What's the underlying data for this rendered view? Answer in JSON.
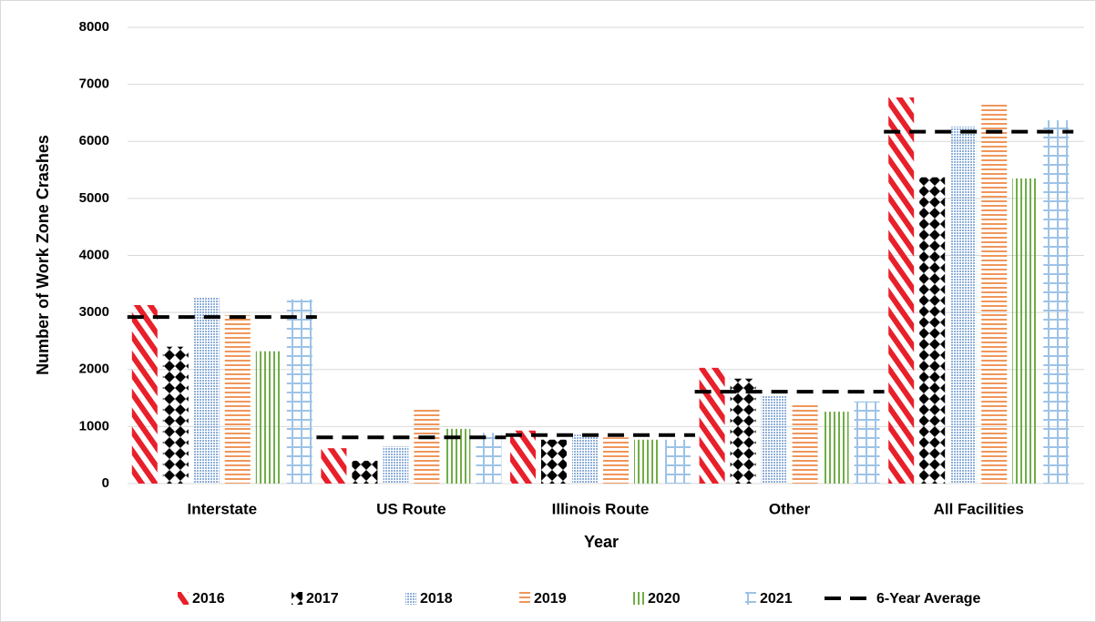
{
  "chart_data": {
    "type": "bar",
    "x_label": "Year",
    "y_label": "Number of Work Zone Crashes",
    "categories": [
      "Interstate",
      "US Route",
      "Illinois Route",
      "Other",
      "All Facilities"
    ],
    "series": [
      {
        "name": "2016",
        "color": "#e8202a",
        "pattern": "diagonal",
        "values": [
          3130,
          620,
          930,
          2030,
          6770
        ]
      },
      {
        "name": "2017",
        "color": "#000000",
        "pattern": "diamond",
        "values": [
          2400,
          400,
          770,
          1840,
          5370
        ]
      },
      {
        "name": "2018",
        "color": "#8fb0d9",
        "pattern": "dots",
        "values": [
          3270,
          650,
          860,
          1550,
          6260
        ]
      },
      {
        "name": "2019",
        "color": "#f0965a",
        "pattern": "horizontal",
        "values": [
          2950,
          1310,
          810,
          1410,
          6650
        ]
      },
      {
        "name": "2020",
        "color": "#70ad47",
        "pattern": "vertical",
        "values": [
          2320,
          960,
          770,
          1260,
          5350
        ]
      },
      {
        "name": "2021",
        "color": "#9dc3e6",
        "pattern": "grid",
        "values": [
          3230,
          890,
          770,
          1440,
          6370
        ]
      }
    ],
    "average": {
      "name": "6-Year Average",
      "color": "#000000",
      "values": [
        2920,
        810,
        850,
        1610,
        6170
      ]
    },
    "ylim": [
      0,
      8000
    ],
    "yticks": [
      0,
      1000,
      2000,
      3000,
      4000,
      5000,
      6000,
      7000,
      8000
    ],
    "grid": true,
    "legend": "bottom"
  }
}
